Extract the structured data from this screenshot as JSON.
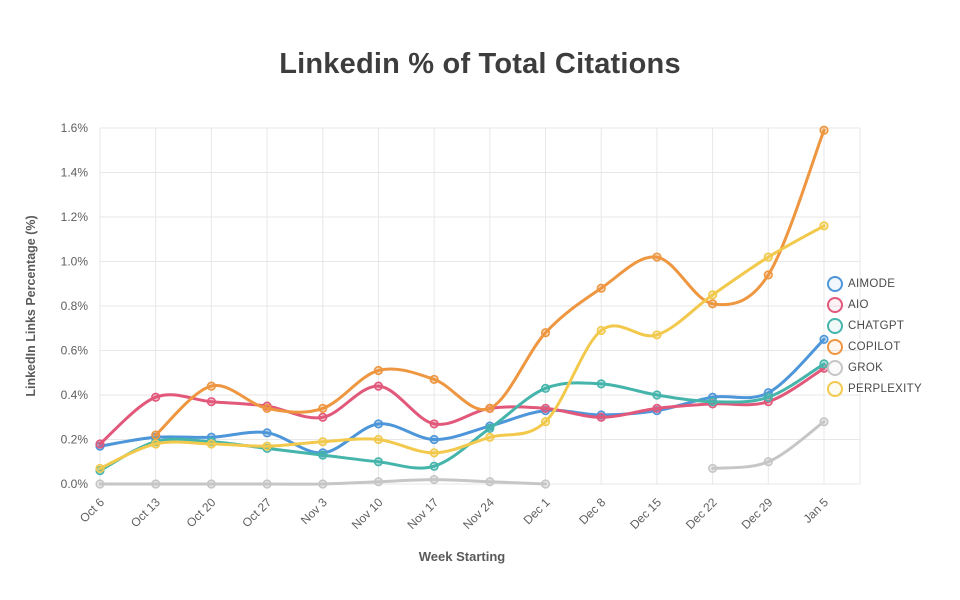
{
  "title": "Linkedin % of Total Citations",
  "chart_data": {
    "type": "line",
    "title": "Linkedin % of Total Citations",
    "xlabel": "Week Starting",
    "ylabel": "LinkedIn Links Percentage (%)",
    "ylim": [
      0,
      1.6
    ],
    "ytick_step": 0.2,
    "ytick_suffix": "%",
    "grid": true,
    "legend_position": "right",
    "line_style": "smooth",
    "categories": [
      "Oct 6",
      "Oct 13",
      "Oct 20",
      "Oct 27",
      "Nov 3",
      "Nov 10",
      "Nov 17",
      "Nov 24",
      "Dec 1",
      "Dec 8",
      "Dec 15",
      "Dec 22",
      "Dec 29",
      "Jan 5"
    ],
    "series": [
      {
        "name": "AIMODE",
        "color": "#4D96D9",
        "values": [
          0.17,
          0.21,
          0.21,
          0.23,
          0.14,
          0.27,
          0.2,
          0.26,
          0.33,
          0.31,
          0.33,
          0.39,
          0.41,
          0.65
        ]
      },
      {
        "name": "AIO",
        "color": "#E2587B",
        "values": [
          0.18,
          0.39,
          0.37,
          0.35,
          0.3,
          0.44,
          0.27,
          0.34,
          0.34,
          0.3,
          0.34,
          0.36,
          0.37,
          0.52
        ]
      },
      {
        "name": "CHATGPT",
        "color": "#45B5AC",
        "values": [
          0.06,
          0.19,
          0.19,
          0.16,
          0.13,
          0.1,
          0.08,
          0.25,
          0.43,
          0.45,
          0.4,
          0.37,
          0.39,
          0.54
        ]
      },
      {
        "name": "COPILOT",
        "color": "#EE9640",
        "values": [
          null,
          0.22,
          0.44,
          0.34,
          0.34,
          0.51,
          0.47,
          0.34,
          0.68,
          0.88,
          1.02,
          0.81,
          0.94,
          1.59
        ]
      },
      {
        "name": "GROK",
        "color": "#C6C6C6",
        "values": [
          0.0,
          0.0,
          0.0,
          0.0,
          0.0,
          0.01,
          0.02,
          0.01,
          0.0,
          null,
          null,
          0.07,
          0.1,
          0.28
        ]
      },
      {
        "name": "PERPLEXITY",
        "color": "#F2C94C",
        "values": [
          0.07,
          0.18,
          0.18,
          0.17,
          0.19,
          0.2,
          0.14,
          0.21,
          0.28,
          0.69,
          0.67,
          0.85,
          1.02,
          1.16
        ]
      }
    ]
  }
}
